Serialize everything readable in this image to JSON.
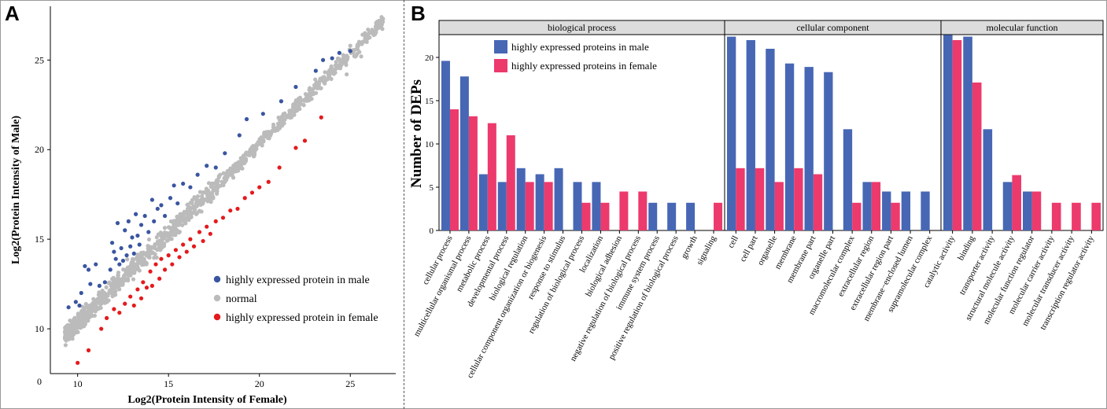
{
  "panels": {
    "a_label": "A",
    "b_label": "B"
  },
  "chart_data": [
    {
      "type": "scatter",
      "panel": "A",
      "xlabel": "Log2(Protein Intensity of Female)",
      "ylabel": "Log2(Protein Intensity of Male)",
      "xlim": [
        8.5,
        27.5
      ],
      "ylim": [
        7.5,
        28
      ],
      "x_ticks": [
        10,
        15,
        20,
        25
      ],
      "y_ticks": [
        10,
        15,
        20,
        25
      ],
      "origin_label": "0",
      "legend_position": "bottom-right",
      "series": [
        {
          "name": "highly expressed protein in male",
          "color": "#3a55a0",
          "points": [
            [
              9.5,
              11.2
            ],
            [
              9.9,
              11.5
            ],
            [
              10.1,
              11.3
            ],
            [
              10.2,
              12.0
            ],
            [
              10.4,
              13.5
            ],
            [
              10.6,
              13.3
            ],
            [
              10.7,
              12.5
            ],
            [
              11.0,
              13.6
            ],
            [
              11.2,
              12.4
            ],
            [
              11.5,
              12.6
            ],
            [
              11.8,
              13.3
            ],
            [
              11.9,
              14.8
            ],
            [
              12.0,
              14.3
            ],
            [
              12.1,
              13.9
            ],
            [
              12.2,
              15.9
            ],
            [
              12.3,
              13.6
            ],
            [
              12.4,
              14.5
            ],
            [
              12.5,
              13.8
            ],
            [
              12.6,
              15.5
            ],
            [
              12.7,
              14.1
            ],
            [
              12.8,
              16.0
            ],
            [
              12.9,
              14.6
            ],
            [
              13.0,
              15.1
            ],
            [
              13.1,
              14.2
            ],
            [
              13.2,
              16.4
            ],
            [
              13.3,
              15.2
            ],
            [
              13.4,
              14.7
            ],
            [
              13.5,
              15.8
            ],
            [
              13.7,
              16.3
            ],
            [
              13.9,
              15.4
            ],
            [
              14.1,
              17.2
            ],
            [
              14.2,
              16.0
            ],
            [
              14.4,
              16.7
            ],
            [
              14.6,
              16.9
            ],
            [
              14.8,
              16.3
            ],
            [
              15.1,
              17.3
            ],
            [
              15.3,
              18.0
            ],
            [
              15.5,
              17.0
            ],
            [
              15.8,
              18.1
            ],
            [
              16.2,
              17.9
            ],
            [
              16.6,
              18.6
            ],
            [
              17.1,
              19.1
            ],
            [
              17.6,
              19.0
            ],
            [
              18.1,
              19.8
            ],
            [
              18.9,
              20.8
            ],
            [
              19.3,
              21.7
            ],
            [
              20.2,
              22.0
            ],
            [
              21.2,
              22.7
            ],
            [
              22.0,
              23.5
            ],
            [
              23.1,
              24.4
            ],
            [
              23.5,
              25.0
            ],
            [
              24.0,
              25.1
            ],
            [
              24.4,
              25.4
            ],
            [
              25.0,
              25.5
            ]
          ]
        },
        {
          "name": "normal",
          "color": "#bbbbbb"
        },
        {
          "name": "highly expressed protein in female",
          "color": "#e41a1c",
          "points": [
            [
              10.0,
              8.1
            ],
            [
              10.6,
              8.8
            ],
            [
              11.3,
              10.0
            ],
            [
              11.6,
              10.6
            ],
            [
              12.0,
              11.1
            ],
            [
              12.3,
              10.9
            ],
            [
              12.6,
              11.4
            ],
            [
              12.9,
              11.8
            ],
            [
              13.1,
              11.3
            ],
            [
              13.3,
              12.2
            ],
            [
              13.5,
              11.7
            ],
            [
              13.6,
              12.6
            ],
            [
              13.8,
              12.3
            ],
            [
              14.0,
              13.2
            ],
            [
              14.1,
              12.4
            ],
            [
              14.3,
              13.6
            ],
            [
              14.5,
              12.8
            ],
            [
              14.6,
              13.9
            ],
            [
              14.8,
              13.3
            ],
            [
              15.0,
              14.1
            ],
            [
              15.2,
              13.6
            ],
            [
              15.4,
              14.4
            ],
            [
              15.6,
              14.0
            ],
            [
              15.8,
              14.7
            ],
            [
              16.0,
              14.3
            ],
            [
              16.2,
              15.0
            ],
            [
              16.4,
              14.6
            ],
            [
              16.7,
              15.4
            ],
            [
              16.9,
              14.9
            ],
            [
              17.1,
              15.7
            ],
            [
              17.3,
              15.3
            ],
            [
              17.6,
              16.0
            ],
            [
              18.0,
              16.2
            ],
            [
              18.4,
              16.6
            ],
            [
              18.8,
              16.7
            ],
            [
              19.2,
              17.3
            ],
            [
              19.6,
              17.6
            ],
            [
              20.0,
              17.9
            ],
            [
              20.5,
              18.2
            ],
            [
              21.1,
              19.0
            ],
            [
              22.0,
              20.1
            ],
            [
              22.5,
              20.5
            ],
            [
              23.4,
              21.8
            ]
          ]
        }
      ]
    },
    {
      "type": "bar",
      "panel": "B",
      "ylabel": "Number of DEPs",
      "ylim": [
        0,
        23
      ],
      "y_ticks": [
        0,
        5,
        10,
        15,
        20
      ],
      "series": [
        {
          "name": "highly expressed proteins in male",
          "color": "#4767b5"
        },
        {
          "name": "highly expressed proteins in female",
          "color": "#ec3a6d"
        }
      ],
      "facets": [
        {
          "title": "biological process",
          "categories": [
            "cellular process",
            "multicellular organismal process",
            "metabolic process",
            "developmental process",
            "biological regulation",
            "cellular component organization or biogenesis",
            "response to stimulus",
            "regulation of biological process",
            "localization",
            "biological adhesion",
            "negative regulation of biological process",
            "immune system process",
            "positive regulation of biological process",
            "growth",
            "signaling"
          ],
          "male": [
            19.6,
            17.8,
            6.5,
            5.6,
            7.2,
            6.5,
            7.2,
            5.6,
            5.6,
            0,
            0,
            3.2,
            3.2,
            3.2,
            0
          ],
          "female": [
            14.0,
            13.2,
            12.4,
            11.0,
            5.6,
            5.6,
            0,
            3.2,
            3.2,
            4.5,
            4.5,
            0,
            0,
            0,
            3.2
          ]
        },
        {
          "title": "cellular component",
          "categories": [
            "cell",
            "cell part",
            "organelle",
            "membrane",
            "membrane part",
            "organelle part",
            "macromolecular complex",
            "extracellular region",
            "extracellular region part",
            "membrane−enclosed lumen",
            "supramolecular complex"
          ],
          "male": [
            22.4,
            22.0,
            21.0,
            19.3,
            18.9,
            18.3,
            11.7,
            5.6,
            4.5,
            4.5,
            4.5
          ],
          "female": [
            7.2,
            7.2,
            5.6,
            7.2,
            6.5,
            0,
            3.2,
            5.6,
            3.2,
            0,
            0
          ],
          "values_note": ""
        },
        {
          "title": "molecular function",
          "categories": [
            "catalytic activity",
            "binding",
            "transporter activity",
            "structural molecule activity",
            "molecular function regulator",
            "molecular carrier activity",
            "molecular transducer activity",
            "transcription regulator activity"
          ],
          "male": [
            22.6,
            22.4,
            11.7,
            5.6,
            4.5,
            0,
            0,
            0
          ],
          "female": [
            22.0,
            17.1,
            0,
            6.4,
            4.5,
            3.2,
            3.2,
            3.2
          ]
        }
      ]
    }
  ]
}
